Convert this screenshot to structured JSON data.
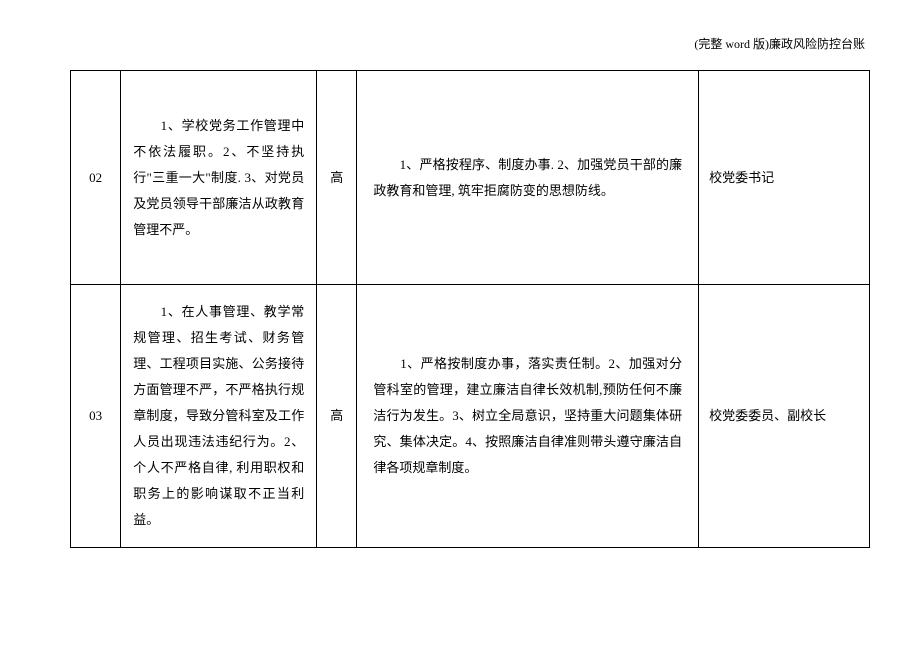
{
  "header": {
    "title": "(完整 word 版)廉政风险防控台账"
  },
  "table": {
    "rows": [
      {
        "num": "02",
        "desc": "　　1、学校党务工作管理中不依法履职。2、不坚持执行\"三重一大\"制度. 3、对党员及党员领导干部廉洁从政教育管理不严。",
        "level": "高",
        "measures": "　　1、严格按程序、制度办事. 2、加强党员干部的廉政教育和管理, 筑牢拒腐防变的思想防线。",
        "resp": "校党委书记"
      },
      {
        "num": "03",
        "desc": "　　1、在人事管理、教学常规管理、招生考试、财务管理、工程项目实施、公务接待方面管理不严，不严格执行规章制度，导致分管科室及工作人员出现违法违纪行为。2、个人不严格自律, 利用职权和职务上的影响谋取不正当利益。",
        "level": "高",
        "measures": "　　1、严格按制度办事，落实责任制。2、加强对分管科室的管理，建立廉洁自律长效机制,预防任何不廉洁行为发生。3、树立全局意识，坚持重大问题集体研究、集体决定。4、按照廉洁自律准则带头遵守廉洁自律各项规章制度。",
        "resp": "校党委委员、副校长"
      }
    ]
  },
  "styling": {
    "font_family": "SimSun",
    "font_size_body": 13,
    "font_size_header": 12,
    "text_color": "#000000",
    "border_color": "#000000",
    "background_color": "#ffffff",
    "line_height": 2.0
  }
}
